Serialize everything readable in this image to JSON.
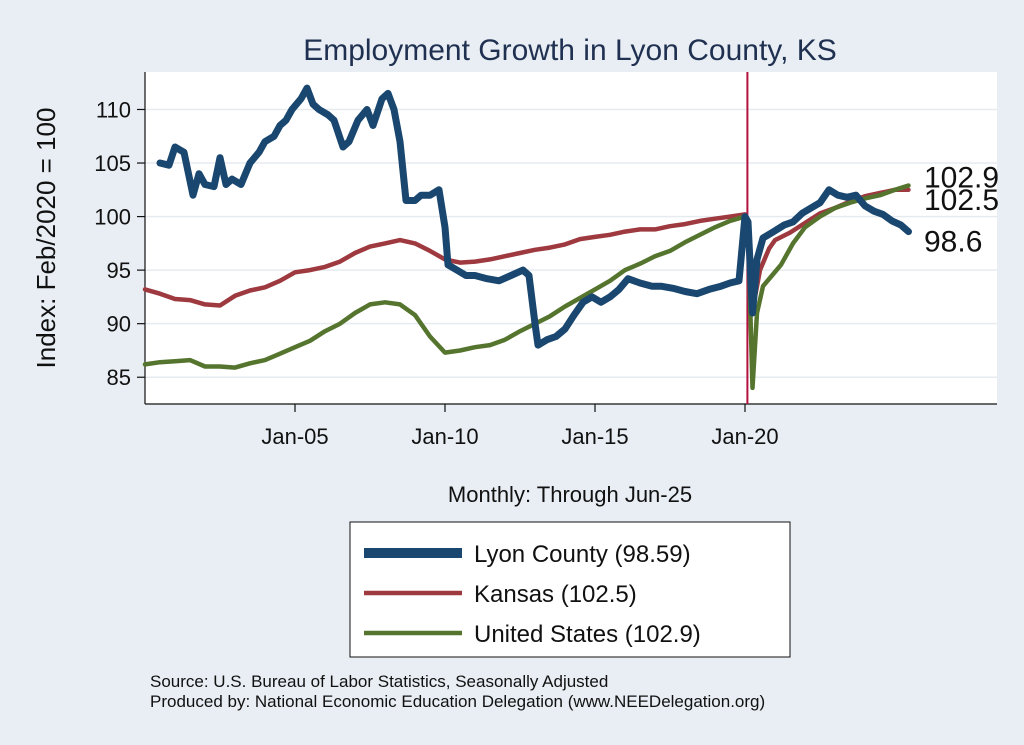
{
  "chart_data": {
    "type": "line",
    "title": "Employment Growth in Lyon  County, KS",
    "ylabel": "Index: Feb/2020 = 100",
    "xlabel": "Monthly: Through Jun-25",
    "ylim": [
      82.5,
      113.5
    ],
    "xlim": [
      2000.0,
      2028.4
    ],
    "yticks": [
      85,
      90,
      95,
      100,
      105,
      110
    ],
    "xticks": [
      {
        "label": "Jan-05",
        "value": 2005
      },
      {
        "label": "Jan-10",
        "value": 2010
      },
      {
        "label": "Jan-15",
        "value": 2015
      },
      {
        "label": "Jan-20",
        "value": 2020
      }
    ],
    "vline": 2020.08,
    "series": [
      {
        "name": "Lyon  County (98.59)",
        "color": "#1a476f",
        "end_label": "98.6",
        "points": [
          [
            2000.5,
            105
          ],
          [
            2000.8,
            104.8
          ],
          [
            2001.0,
            106.5
          ],
          [
            2001.3,
            106
          ],
          [
            2001.6,
            102
          ],
          [
            2001.8,
            104
          ],
          [
            2002.0,
            103
          ],
          [
            2002.3,
            102.8
          ],
          [
            2002.5,
            105.5
          ],
          [
            2002.7,
            103
          ],
          [
            2002.9,
            103.5
          ],
          [
            2003.2,
            103
          ],
          [
            2003.5,
            105
          ],
          [
            2003.8,
            106
          ],
          [
            2004.0,
            107
          ],
          [
            2004.3,
            107.5
          ],
          [
            2004.5,
            108.5
          ],
          [
            2004.7,
            109
          ],
          [
            2004.9,
            110
          ],
          [
            2005.2,
            111
          ],
          [
            2005.4,
            112
          ],
          [
            2005.6,
            110.5
          ],
          [
            2005.8,
            110
          ],
          [
            2006.1,
            109.5
          ],
          [
            2006.3,
            109
          ],
          [
            2006.6,
            106.5
          ],
          [
            2006.8,
            107
          ],
          [
            2007.1,
            109
          ],
          [
            2007.4,
            110
          ],
          [
            2007.6,
            108.5
          ],
          [
            2007.9,
            111
          ],
          [
            2008.1,
            111.5
          ],
          [
            2008.3,
            110
          ],
          [
            2008.5,
            107
          ],
          [
            2008.7,
            101.5
          ],
          [
            2009.0,
            101.5
          ],
          [
            2009.2,
            102
          ],
          [
            2009.5,
            102
          ],
          [
            2009.8,
            102.5
          ],
          [
            2010.0,
            99
          ],
          [
            2010.1,
            95.5
          ],
          [
            2010.4,
            95
          ],
          [
            2010.7,
            94.5
          ],
          [
            2011.0,
            94.5
          ],
          [
            2011.4,
            94.2
          ],
          [
            2011.8,
            94
          ],
          [
            2012.2,
            94.5
          ],
          [
            2012.6,
            95
          ],
          [
            2012.8,
            94.5
          ],
          [
            2013.0,
            90
          ],
          [
            2013.1,
            88
          ],
          [
            2013.4,
            88.5
          ],
          [
            2013.7,
            88.8
          ],
          [
            2014.0,
            89.5
          ],
          [
            2014.3,
            90.8
          ],
          [
            2014.6,
            92
          ],
          [
            2014.9,
            92.5
          ],
          [
            2015.2,
            92
          ],
          [
            2015.5,
            92.5
          ],
          [
            2015.8,
            93.2
          ],
          [
            2016.1,
            94.2
          ],
          [
            2016.5,
            93.8
          ],
          [
            2016.9,
            93.5
          ],
          [
            2017.2,
            93.5
          ],
          [
            2017.6,
            93.3
          ],
          [
            2018.0,
            93
          ],
          [
            2018.4,
            92.8
          ],
          [
            2018.8,
            93.2
          ],
          [
            2019.2,
            93.5
          ],
          [
            2019.5,
            93.8
          ],
          [
            2019.8,
            94
          ],
          [
            2020.0,
            100
          ],
          [
            2020.1,
            99.5
          ],
          [
            2020.25,
            91
          ],
          [
            2020.4,
            96
          ],
          [
            2020.6,
            98
          ],
          [
            2020.9,
            98.5
          ],
          [
            2021.3,
            99.2
          ],
          [
            2021.6,
            99.5
          ],
          [
            2021.9,
            100.3
          ],
          [
            2022.2,
            100.8
          ],
          [
            2022.5,
            101.3
          ],
          [
            2022.8,
            102.5
          ],
          [
            2023.1,
            102
          ],
          [
            2023.4,
            101.8
          ],
          [
            2023.7,
            102
          ],
          [
            2024.0,
            101
          ],
          [
            2024.3,
            100.5
          ],
          [
            2024.6,
            100.2
          ],
          [
            2024.9,
            99.6
          ],
          [
            2025.2,
            99.2
          ],
          [
            2025.45,
            98.6
          ]
        ]
      },
      {
        "name": "Kansas (102.5)",
        "color": "#9e3a3f",
        "end_label": "102.5",
        "points": [
          [
            2000.0,
            93.2
          ],
          [
            2000.5,
            92.8
          ],
          [
            2001.0,
            92.3
          ],
          [
            2001.5,
            92.2
          ],
          [
            2002.0,
            91.8
          ],
          [
            2002.5,
            91.7
          ],
          [
            2003.0,
            92.6
          ],
          [
            2003.5,
            93.1
          ],
          [
            2004.0,
            93.4
          ],
          [
            2004.5,
            94
          ],
          [
            2005.0,
            94.8
          ],
          [
            2005.5,
            95
          ],
          [
            2006.0,
            95.3
          ],
          [
            2006.5,
            95.8
          ],
          [
            2007.0,
            96.6
          ],
          [
            2007.5,
            97.2
          ],
          [
            2008.0,
            97.5
          ],
          [
            2008.5,
            97.8
          ],
          [
            2009.0,
            97.5
          ],
          [
            2009.5,
            96.8
          ],
          [
            2010.0,
            96
          ],
          [
            2010.5,
            95.7
          ],
          [
            2011.0,
            95.8
          ],
          [
            2011.5,
            96
          ],
          [
            2012.0,
            96.3
          ],
          [
            2012.5,
            96.6
          ],
          [
            2013.0,
            96.9
          ],
          [
            2013.5,
            97.1
          ],
          [
            2014.0,
            97.4
          ],
          [
            2014.5,
            97.9
          ],
          [
            2015.0,
            98.1
          ],
          [
            2015.5,
            98.3
          ],
          [
            2016.0,
            98.6
          ],
          [
            2016.5,
            98.8
          ],
          [
            2017.0,
            98.8
          ],
          [
            2017.5,
            99.1
          ],
          [
            2018.0,
            99.3
          ],
          [
            2018.5,
            99.6
          ],
          [
            2019.0,
            99.8
          ],
          [
            2019.5,
            100
          ],
          [
            2020.0,
            100.2
          ],
          [
            2020.1,
            99.5
          ],
          [
            2020.3,
            92
          ],
          [
            2020.5,
            95
          ],
          [
            2020.8,
            97
          ],
          [
            2021.0,
            97.8
          ],
          [
            2021.5,
            98.5
          ],
          [
            2022.0,
            99.4
          ],
          [
            2022.5,
            100.3
          ],
          [
            2023.0,
            100.8
          ],
          [
            2023.5,
            101.4
          ],
          [
            2024.0,
            101.9
          ],
          [
            2024.5,
            102.2
          ],
          [
            2025.0,
            102.5
          ],
          [
            2025.45,
            102.5
          ]
        ]
      },
      {
        "name": "United States (102.9)",
        "color": "#55752f",
        "end_label": "102.9",
        "points": [
          [
            2000.0,
            86.2
          ],
          [
            2000.5,
            86.4
          ],
          [
            2001.0,
            86.5
          ],
          [
            2001.5,
            86.6
          ],
          [
            2002.0,
            86
          ],
          [
            2002.5,
            86
          ],
          [
            2003.0,
            85.9
          ],
          [
            2003.5,
            86.3
          ],
          [
            2004.0,
            86.6
          ],
          [
            2004.5,
            87.2
          ],
          [
            2005.0,
            87.8
          ],
          [
            2005.5,
            88.4
          ],
          [
            2006.0,
            89.3
          ],
          [
            2006.5,
            90
          ],
          [
            2007.0,
            91
          ],
          [
            2007.5,
            91.8
          ],
          [
            2008.0,
            92
          ],
          [
            2008.5,
            91.8
          ],
          [
            2009.0,
            90.8
          ],
          [
            2009.5,
            88.8
          ],
          [
            2010.0,
            87.3
          ],
          [
            2010.5,
            87.5
          ],
          [
            2011.0,
            87.8
          ],
          [
            2011.5,
            88
          ],
          [
            2012.0,
            88.5
          ],
          [
            2012.5,
            89.3
          ],
          [
            2013.0,
            90
          ],
          [
            2013.5,
            90.7
          ],
          [
            2014.0,
            91.6
          ],
          [
            2014.5,
            92.4
          ],
          [
            2015.0,
            93.2
          ],
          [
            2015.5,
            94
          ],
          [
            2016.0,
            95
          ],
          [
            2016.5,
            95.6
          ],
          [
            2017.0,
            96.3
          ],
          [
            2017.5,
            96.8
          ],
          [
            2018.0,
            97.6
          ],
          [
            2018.5,
            98.3
          ],
          [
            2019.0,
            99
          ],
          [
            2019.5,
            99.6
          ],
          [
            2020.0,
            100
          ],
          [
            2020.1,
            99
          ],
          [
            2020.25,
            84
          ],
          [
            2020.4,
            91
          ],
          [
            2020.6,
            93.5
          ],
          [
            2020.9,
            94.5
          ],
          [
            2021.2,
            95.5
          ],
          [
            2021.6,
            97.5
          ],
          [
            2022.0,
            99
          ],
          [
            2022.5,
            100
          ],
          [
            2023.0,
            100.8
          ],
          [
            2023.5,
            101.3
          ],
          [
            2024.0,
            101.7
          ],
          [
            2024.5,
            102
          ],
          [
            2025.0,
            102.5
          ],
          [
            2025.45,
            102.9
          ]
        ]
      }
    ]
  },
  "footer": {
    "source": "Source: U.S. Bureau of Labor Statistics, Seasonally Adjusted",
    "produced_by": "Produced by: National Economic Education Delegation (www.NEEDelegation.org)"
  }
}
